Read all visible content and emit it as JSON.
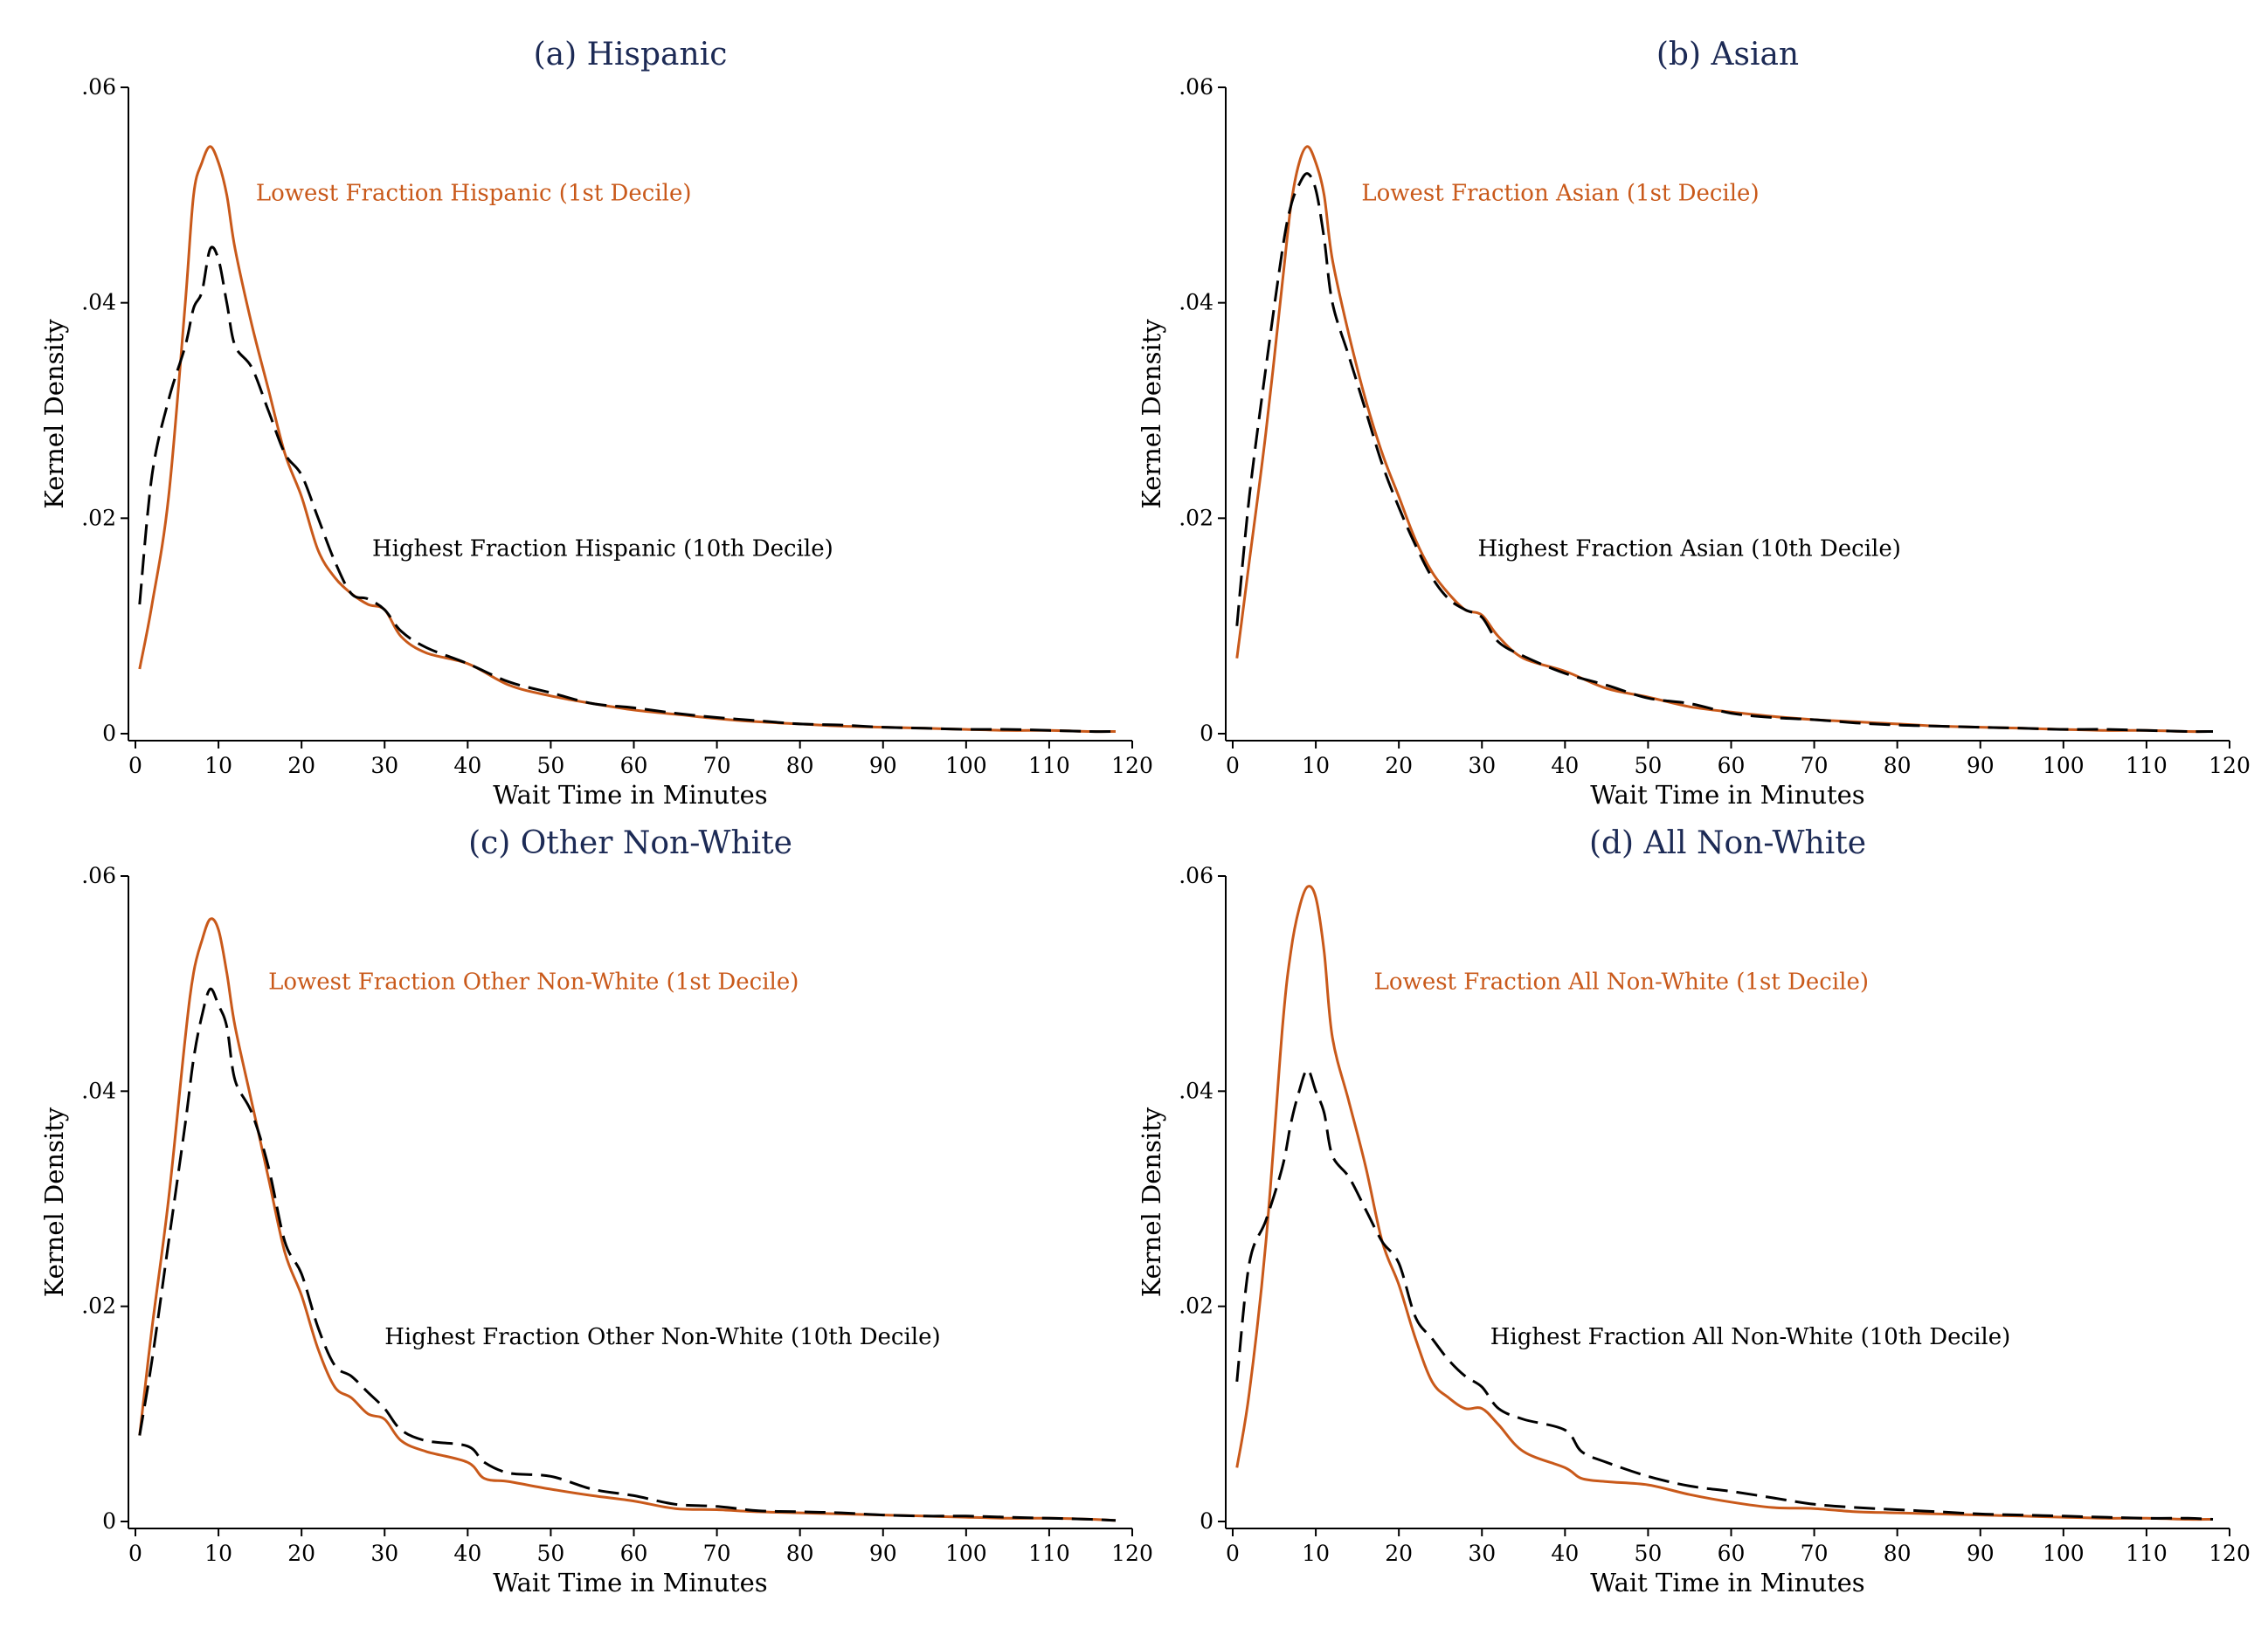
{
  "colors": {
    "title": "#1c2a55",
    "lowest": "#c9591a",
    "highest": "#000000",
    "axis": "#000000"
  },
  "chart_data": [
    {
      "type": "line",
      "title": "(a) Hispanic",
      "xlabel": "Wait Time in Minutes",
      "ylabel": "Kernel Density",
      "xlim": [
        0,
        120
      ],
      "ylim": [
        0,
        0.06
      ],
      "xticks": [
        0,
        10,
        20,
        30,
        40,
        50,
        60,
        70,
        80,
        90,
        100,
        110,
        120
      ],
      "xtick_labels": [
        "0",
        "10",
        "20",
        "30",
        "40",
        "50",
        "60",
        "70",
        "80",
        "90",
        "100",
        "110",
        "120"
      ],
      "yticks": [
        0,
        0.02,
        0.04,
        0.06
      ],
      "ytick_labels": [
        "0",
        ".02",
        ".04",
        ".06"
      ],
      "annotations": [
        {
          "text": "Lowest Fraction Hispanic (1st Decile)",
          "series": "lowest",
          "x": 14.5,
          "y": 0.0495
        },
        {
          "text": "Highest Fraction Hispanic (10th Decile)",
          "series": "highest",
          "x": 28.5,
          "y": 0.0165
        }
      ],
      "series": [
        {
          "name": "Lowest Fraction Hispanic (1st Decile)",
          "style": "solid",
          "x": [
            0.5,
            2,
            4,
            6,
            7,
            8,
            9,
            10,
            11,
            12,
            14,
            16,
            18,
            20,
            22,
            24,
            26,
            28,
            30,
            32,
            35,
            40,
            45,
            50,
            55,
            60,
            65,
            70,
            75,
            80,
            85,
            90,
            95,
            100,
            105,
            110,
            115,
            118
          ],
          "y": [
            0.006,
            0.012,
            0.022,
            0.04,
            0.05,
            0.053,
            0.0545,
            0.053,
            0.05,
            0.045,
            0.038,
            0.032,
            0.026,
            0.022,
            0.017,
            0.0145,
            0.013,
            0.012,
            0.0115,
            0.009,
            0.0075,
            0.0065,
            0.0045,
            0.0035,
            0.0028,
            0.0022,
            0.0018,
            0.0014,
            0.0011,
            0.0009,
            0.0007,
            0.0006,
            0.0005,
            0.0004,
            0.0003,
            0.0003,
            0.0002,
            0.0002
          ]
        },
        {
          "name": "Highest Fraction Hispanic (10th Decile)",
          "style": "dashed",
          "x": [
            0.5,
            2,
            4,
            6,
            7,
            8,
            9,
            10,
            11,
            12,
            14,
            16,
            18,
            20,
            22,
            24,
            26,
            28,
            30,
            32,
            35,
            40,
            45,
            50,
            55,
            60,
            65,
            70,
            75,
            80,
            85,
            90,
            95,
            100,
            105,
            110,
            115,
            118
          ],
          "y": [
            0.012,
            0.024,
            0.031,
            0.036,
            0.0395,
            0.041,
            0.045,
            0.044,
            0.04,
            0.036,
            0.034,
            0.03,
            0.026,
            0.024,
            0.02,
            0.016,
            0.013,
            0.0125,
            0.0115,
            0.0095,
            0.008,
            0.0065,
            0.0048,
            0.0038,
            0.0028,
            0.0024,
            0.0019,
            0.0015,
            0.0012,
            0.0009,
            0.0008,
            0.0006,
            0.0005,
            0.0004,
            0.0004,
            0.0003,
            0.0002,
            0.0002
          ]
        }
      ]
    },
    {
      "type": "line",
      "title": "(b) Asian",
      "xlabel": "Wait Time in Minutes",
      "ylabel": "Kernel Density",
      "xlim": [
        0,
        120
      ],
      "ylim": [
        0,
        0.06
      ],
      "xticks": [
        0,
        10,
        20,
        30,
        40,
        50,
        60,
        70,
        80,
        90,
        100,
        110,
        120
      ],
      "xtick_labels": [
        "0",
        "10",
        "20",
        "30",
        "40",
        "50",
        "60",
        "70",
        "80",
        "90",
        "100",
        "110",
        "120"
      ],
      "yticks": [
        0,
        0.02,
        0.04,
        0.06
      ],
      "ytick_labels": [
        "0",
        ".02",
        ".04",
        ".06"
      ],
      "annotations": [
        {
          "text": "Lowest Fraction Asian (1st Decile)",
          "series": "lowest",
          "x": 15.5,
          "y": 0.0495
        },
        {
          "text": "Highest Fraction Asian (10th Decile)",
          "series": "highest",
          "x": 29.5,
          "y": 0.0165
        }
      ],
      "series": [
        {
          "name": "Lowest Fraction Asian (1st Decile)",
          "style": "solid",
          "x": [
            0.5,
            2,
            4,
            6,
            7,
            8,
            9,
            10,
            11,
            12,
            14,
            16,
            18,
            20,
            22,
            24,
            26,
            28,
            30,
            32,
            35,
            40,
            45,
            50,
            55,
            60,
            65,
            70,
            75,
            80,
            85,
            90,
            95,
            100,
            105,
            110,
            115,
            118
          ],
          "y": [
            0.007,
            0.016,
            0.028,
            0.042,
            0.049,
            0.053,
            0.0545,
            0.053,
            0.05,
            0.044,
            0.037,
            0.031,
            0.026,
            0.022,
            0.018,
            0.015,
            0.013,
            0.0115,
            0.011,
            0.009,
            0.007,
            0.0058,
            0.0042,
            0.0034,
            0.0025,
            0.002,
            0.0016,
            0.0013,
            0.0011,
            0.0009,
            0.0007,
            0.0006,
            0.0005,
            0.0004,
            0.0003,
            0.0003,
            0.0002,
            0.0002
          ]
        },
        {
          "name": "Highest Fraction Asian (10th Decile)",
          "style": "dashed",
          "x": [
            0.5,
            2,
            4,
            6,
            7,
            8,
            9,
            10,
            11,
            12,
            14,
            16,
            18,
            20,
            22,
            24,
            26,
            28,
            30,
            32,
            35,
            40,
            45,
            50,
            55,
            60,
            65,
            70,
            75,
            80,
            85,
            90,
            95,
            100,
            105,
            110,
            115,
            118
          ],
          "y": [
            0.01,
            0.022,
            0.034,
            0.045,
            0.049,
            0.051,
            0.052,
            0.0505,
            0.046,
            0.04,
            0.035,
            0.03,
            0.025,
            0.021,
            0.0175,
            0.0145,
            0.0125,
            0.0115,
            0.0108,
            0.0085,
            0.0072,
            0.0056,
            0.0045,
            0.0033,
            0.0028,
            0.0019,
            0.0015,
            0.0013,
            0.001,
            0.0008,
            0.0007,
            0.0006,
            0.0005,
            0.0004,
            0.0004,
            0.0003,
            0.0002,
            0.0002
          ]
        }
      ]
    },
    {
      "type": "line",
      "title": "(c) Other Non-White",
      "xlabel": "Wait Time in Minutes",
      "ylabel": "Kernel Density",
      "xlim": [
        0,
        120
      ],
      "ylim": [
        0,
        0.06
      ],
      "xticks": [
        0,
        10,
        20,
        30,
        40,
        50,
        60,
        70,
        80,
        90,
        100,
        110,
        120
      ],
      "xtick_labels": [
        "0",
        "10",
        "20",
        "30",
        "40",
        "50",
        "60",
        "70",
        "80",
        "90",
        "100",
        "110",
        "120"
      ],
      "yticks": [
        0,
        0.02,
        0.04,
        0.06
      ],
      "ytick_labels": [
        "0",
        ".02",
        ".04",
        ".06"
      ],
      "annotations": [
        {
          "text": "Lowest Fraction Other Non-White (1st Decile)",
          "series": "lowest",
          "x": 16.0,
          "y": 0.0495
        },
        {
          "text": "Highest Fraction Other Non-White (10th Decile)",
          "series": "highest",
          "x": 30.0,
          "y": 0.0165
        }
      ],
      "series": [
        {
          "name": "Lowest Fraction Other Non-White (1st Decile)",
          "style": "solid",
          "x": [
            0.5,
            2,
            4,
            6,
            7,
            8,
            9,
            10,
            11,
            12,
            14,
            16,
            18,
            20,
            22,
            24,
            26,
            28,
            30,
            32,
            35,
            40,
            42,
            45,
            50,
            55,
            60,
            65,
            70,
            75,
            80,
            85,
            90,
            95,
            100,
            105,
            110,
            115,
            118
          ],
          "y": [
            0.008,
            0.018,
            0.03,
            0.045,
            0.051,
            0.054,
            0.056,
            0.055,
            0.051,
            0.046,
            0.039,
            0.032,
            0.025,
            0.021,
            0.016,
            0.0125,
            0.0115,
            0.01,
            0.0095,
            0.0075,
            0.0065,
            0.0055,
            0.004,
            0.0037,
            0.003,
            0.0024,
            0.0019,
            0.0012,
            0.0011,
            0.0009,
            0.0008,
            0.0007,
            0.0006,
            0.0005,
            0.0004,
            0.0003,
            0.0003,
            0.0002,
            0.0001
          ]
        },
        {
          "name": "Highest Fraction Other Non-White (10th Decile)",
          "style": "dashed",
          "x": [
            0.5,
            2,
            4,
            6,
            7,
            8,
            9,
            10,
            11,
            12,
            14,
            16,
            18,
            20,
            22,
            24,
            26,
            28,
            30,
            32,
            35,
            40,
            42,
            45,
            50,
            55,
            60,
            65,
            70,
            75,
            80,
            85,
            90,
            95,
            100,
            105,
            110,
            115,
            118
          ],
          "y": [
            0.008,
            0.015,
            0.026,
            0.037,
            0.043,
            0.047,
            0.0495,
            0.048,
            0.046,
            0.041,
            0.038,
            0.033,
            0.026,
            0.023,
            0.018,
            0.0145,
            0.0135,
            0.012,
            0.0105,
            0.0085,
            0.0075,
            0.007,
            0.0055,
            0.0045,
            0.0042,
            0.003,
            0.0024,
            0.0016,
            0.0014,
            0.001,
            0.0009,
            0.0008,
            0.0006,
            0.0005,
            0.0005,
            0.0004,
            0.0003,
            0.0002,
            0.0001
          ]
        }
      ]
    },
    {
      "type": "line",
      "title": "(d) All Non-White",
      "xlabel": "Wait Time in Minutes",
      "ylabel": "Kernel Density",
      "xlim": [
        0,
        120
      ],
      "ylim": [
        0,
        0.06
      ],
      "xticks": [
        0,
        10,
        20,
        30,
        40,
        50,
        60,
        70,
        80,
        90,
        100,
        110,
        120
      ],
      "xtick_labels": [
        "0",
        "10",
        "20",
        "30",
        "40",
        "50",
        "60",
        "70",
        "80",
        "90",
        "100",
        "110",
        "120"
      ],
      "yticks": [
        0,
        0.02,
        0.04,
        0.06
      ],
      "ytick_labels": [
        "0",
        ".02",
        ".04",
        ".06"
      ],
      "annotations": [
        {
          "text": "Lowest Fraction All Non-White (1st Decile)",
          "series": "lowest",
          "x": 17.0,
          "y": 0.0495
        },
        {
          "text": "Highest Fraction All Non-White (10th Decile)",
          "series": "highest",
          "x": 31.0,
          "y": 0.0165
        }
      ],
      "series": [
        {
          "name": "Lowest Fraction All Non-White (1st Decile)",
          "style": "solid",
          "x": [
            0.5,
            2,
            4,
            6,
            7,
            8,
            9,
            10,
            11,
            12,
            14,
            16,
            18,
            20,
            22,
            24,
            26,
            28,
            30,
            32,
            35,
            40,
            42,
            45,
            50,
            55,
            60,
            65,
            70,
            75,
            80,
            85,
            90,
            95,
            100,
            105,
            110,
            115,
            118
          ],
          "y": [
            0.005,
            0.012,
            0.026,
            0.046,
            0.053,
            0.057,
            0.059,
            0.058,
            0.053,
            0.045,
            0.039,
            0.033,
            0.026,
            0.022,
            0.017,
            0.013,
            0.0115,
            0.0105,
            0.0105,
            0.009,
            0.0065,
            0.005,
            0.004,
            0.0037,
            0.0034,
            0.0025,
            0.0018,
            0.0013,
            0.0012,
            0.0009,
            0.0008,
            0.0007,
            0.0006,
            0.0005,
            0.0004,
            0.0003,
            0.0003,
            0.0002,
            0.0002
          ]
        },
        {
          "name": "Highest Fraction All Non-White (10th Decile)",
          "style": "dashed",
          "x": [
            0.5,
            2,
            4,
            6,
            7,
            8,
            9,
            10,
            11,
            12,
            14,
            16,
            18,
            20,
            22,
            24,
            26,
            28,
            30,
            32,
            35,
            40,
            42,
            45,
            50,
            55,
            60,
            65,
            70,
            75,
            80,
            85,
            90,
            95,
            100,
            105,
            110,
            115,
            118
          ],
          "y": [
            0.013,
            0.024,
            0.028,
            0.033,
            0.037,
            0.04,
            0.042,
            0.04,
            0.038,
            0.034,
            0.032,
            0.029,
            0.026,
            0.024,
            0.019,
            0.017,
            0.015,
            0.0135,
            0.0125,
            0.0105,
            0.0095,
            0.0085,
            0.0065,
            0.0055,
            0.0042,
            0.0033,
            0.0028,
            0.0022,
            0.0016,
            0.0013,
            0.0011,
            0.0009,
            0.0007,
            0.0006,
            0.0005,
            0.0004,
            0.0003,
            0.0003,
            0.0002
          ]
        }
      ]
    }
  ]
}
